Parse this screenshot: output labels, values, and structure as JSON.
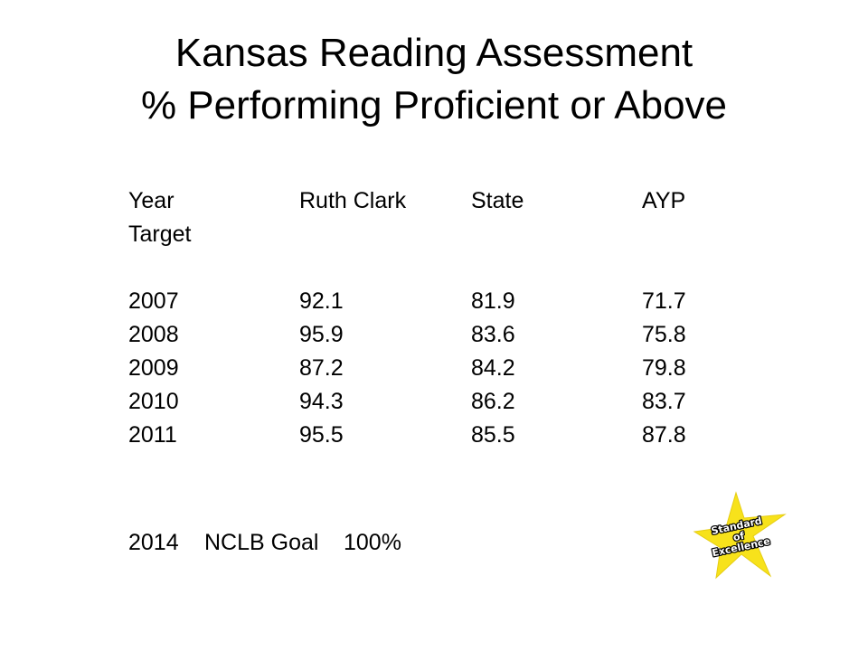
{
  "slide": {
    "title_line1": "Kansas Reading Assessment",
    "title_line2": "% Performing Proficient or Above"
  },
  "table": {
    "headers": {
      "year": "Year",
      "ruth_clark": "Ruth Clark",
      "state": "State",
      "ayp": "AYP",
      "ayp_second_line": "Target"
    },
    "rows": [
      {
        "year": "2007",
        "ruth_clark": "92.1",
        "state": "81.9",
        "ayp": "71.7"
      },
      {
        "year": "2008",
        "ruth_clark": "95.9",
        "state": "83.6",
        "ayp": "75.8"
      },
      {
        "year": "2009",
        "ruth_clark": "87.2",
        "state": "84.2",
        "ayp": "79.8"
      },
      {
        "year": "2010",
        "ruth_clark": "94.3",
        "state": "86.2",
        "ayp": "83.7"
      },
      {
        "year": "2011",
        "ruth_clark": "95.5",
        "state": "85.5",
        "ayp": "87.8"
      }
    ]
  },
  "goal": {
    "year": "2014",
    "label": "NCLB Goal",
    "value": "100%"
  },
  "star_badge": {
    "line1": "Standard",
    "line2": "of",
    "line3": "Excellence",
    "fill_color": "#f7e21b",
    "text_color": "#ffffff",
    "outline_color": "#000000"
  }
}
